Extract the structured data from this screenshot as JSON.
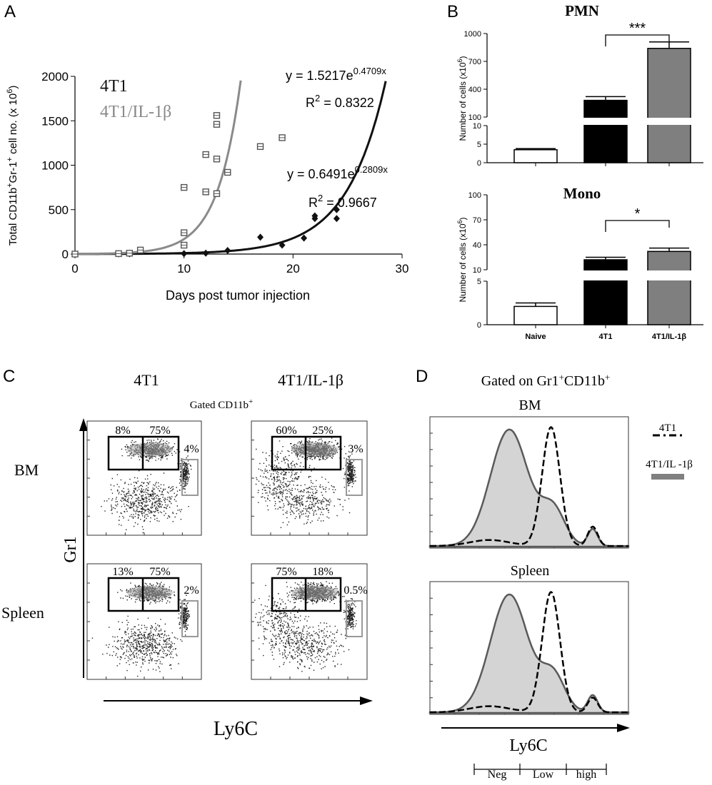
{
  "panels": {
    "A": "A",
    "B": "B",
    "C": "C",
    "D": "D"
  },
  "colors": {
    "black_series": "#111111",
    "gray_series": "#8a8a8a",
    "bar_naive": "#ffffff",
    "bar_4t1": "#000000",
    "bar_il1b": "#7f7f7f",
    "fill_gray": "#d4d4d4"
  },
  "chart_data": [
    {
      "panel": "A",
      "type": "scatter",
      "xlabel": "Days post tumor injection",
      "ylabel_parts": [
        "Total  CD11b",
        "+",
        "Gr-1",
        "+",
        " cell no. (x 10",
        "6",
        ")"
      ],
      "xlim": [
        0,
        30
      ],
      "ylim": [
        0,
        2000
      ],
      "x_ticks": [
        0,
        10,
        20,
        30
      ],
      "y_ticks": [
        0,
        500,
        1000,
        1500,
        2000
      ],
      "legend": [
        "4T1",
        "4T1/IL-1β"
      ],
      "series": [
        {
          "name": "4T1",
          "marker": "diamond",
          "equation": {
            "prefix": "y = 0.6491e",
            "exp": "0.2809x",
            "r2_prefix": "R",
            "r2_sup": "2",
            "r2_value": " = 0.9667"
          },
          "fit": {
            "a": 0.6491,
            "b": 0.2809
          },
          "points": [
            [
              0,
              0
            ],
            [
              4,
              2
            ],
            [
              5,
              3
            ],
            [
              10,
              5
            ],
            [
              12,
              10
            ],
            [
              14,
              40
            ],
            [
              17,
              190
            ],
            [
              19,
              100
            ],
            [
              21,
              180
            ],
            [
              22,
              430
            ],
            [
              22,
              400
            ],
            [
              24,
              500
            ],
            [
              24,
              400
            ]
          ]
        },
        {
          "name": "4T1/IL-1β",
          "marker": "square",
          "equation": {
            "prefix": "y = 1.5217e",
            "exp": "0.4709x",
            "r2_prefix": "R",
            "r2_sup": "2",
            "r2_value": " = 0.8322"
          },
          "fit": {
            "a": 1.5217,
            "b": 0.4709
          },
          "points": [
            [
              0,
              0
            ],
            [
              4,
              5
            ],
            [
              5,
              10
            ],
            [
              6,
              45
            ],
            [
              10,
              750
            ],
            [
              10,
              240
            ],
            [
              10,
              100
            ],
            [
              12,
              1120
            ],
            [
              12,
              700
            ],
            [
              13,
              1560
            ],
            [
              13,
              1460
            ],
            [
              13,
              1070
            ],
            [
              13,
              680
            ],
            [
              14,
              920
            ],
            [
              17,
              1210
            ],
            [
              19,
              1310
            ]
          ]
        }
      ]
    },
    {
      "panel": "B-PMN",
      "type": "bar",
      "title": "PMN",
      "ylabel_parts": [
        "Number of cells (x10",
        "6",
        ")"
      ],
      "categories": [
        "Naive",
        "4T1",
        "4T1/IL-1β"
      ],
      "values": [
        3.5,
        280,
        840
      ],
      "errors": [
        0.3,
        40,
        70
      ],
      "upper_ticks": [
        100,
        400,
        700,
        1000
      ],
      "lower_ticks": [
        0,
        5,
        10
      ],
      "significance": {
        "between": [
          1,
          2
        ],
        "label": "***"
      }
    },
    {
      "panel": "B-Mono",
      "type": "bar",
      "title": "Mono",
      "ylabel_parts": [
        "Number of cells (x10",
        "6",
        ")"
      ],
      "categories": [
        "Naive",
        "4T1",
        "4T1/IL-1β"
      ],
      "values": [
        2.1,
        22,
        32
      ],
      "errors": [
        0.4,
        3,
        4
      ],
      "upper_ticks": [
        10,
        40,
        70,
        100
      ],
      "lower_ticks": [
        0,
        5
      ],
      "significance": {
        "between": [
          1,
          2
        ],
        "label": "*"
      }
    }
  ],
  "panel_c": {
    "col_headers": [
      "4T1",
      "4T1/IL-1β"
    ],
    "subheader": "Gated CD11b",
    "subheader_sup": "+",
    "row_labels": [
      "BM",
      "Spleen"
    ],
    "y_axis": "Gr1",
    "x_axis": "Ly6C",
    "plots": [
      {
        "gate_pcts": [
          "8%",
          "75%",
          "4%"
        ]
      },
      {
        "gate_pcts": [
          "60%",
          "25%",
          "3%"
        ]
      },
      {
        "gate_pcts": [
          "13%",
          "75%",
          "2%"
        ]
      },
      {
        "gate_pcts": [
          "75%",
          "18%",
          "0.5%"
        ]
      }
    ]
  },
  "panel_d": {
    "title": "Gated on Gr1",
    "title_sup1": "+",
    "title_mid": "CD11b",
    "title_sup2": "+",
    "plots": [
      "BM",
      "Spleen"
    ],
    "legend": [
      "4T1",
      "4T1/IL -1β"
    ],
    "x_axis": "Ly6C",
    "ranges": [
      "Neg",
      "Low",
      "high"
    ]
  }
}
